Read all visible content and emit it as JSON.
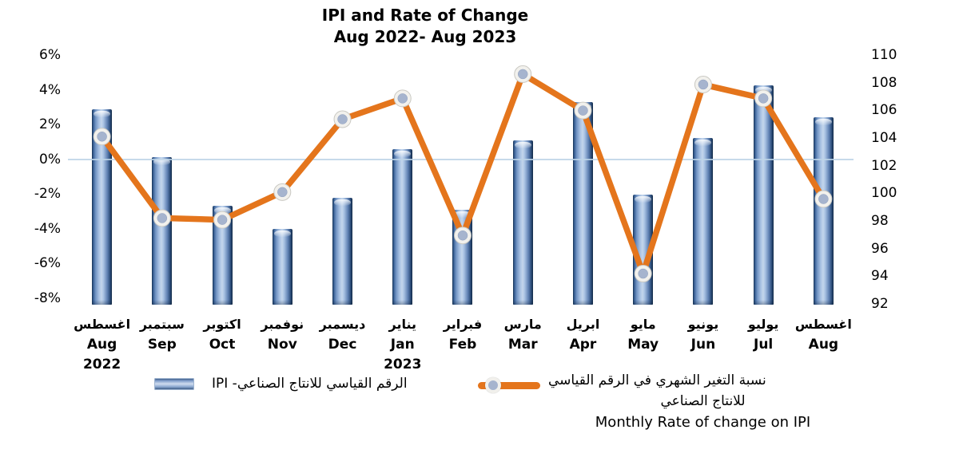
{
  "title": {
    "line1": "IPI and Rate of Change",
    "line2": "Aug 2022- Aug 2023"
  },
  "legend": {
    "bar_label": "الرقم القياسي للانتاج الصناعي- IPI",
    "line_label_ar1": "نسبة التغير الشهري في الرقم القياسي",
    "line_label_ar2": "للانتاج الصناعي",
    "line_label_en": "Monthly Rate of change on IPI"
  },
  "colors": {
    "bar_dark": "#1d3a63",
    "bar_light": "#c4d6ec",
    "line": "#e4751c",
    "marker_fill": "#a6b4ce",
    "marker_ring": "#f2f1ed",
    "gridline": "#bdd3e6",
    "text": "#000000"
  },
  "chart_data": {
    "type": "combo_bar_line",
    "title": "IPI and Rate of Change",
    "subtitle": "Aug 2022- Aug 2023",
    "categories_ar": [
      "اغسطس",
      "سبتمبر",
      "اكتوبر",
      "نوفمبر",
      "ديسمبر",
      "يناير",
      "فبراير",
      "مارس",
      "ابريل",
      "مايو",
      "يونيو",
      "يوليو",
      "اغسطس"
    ],
    "categories_en": [
      "Aug",
      "Sep",
      "Oct",
      "Nov",
      "Dec",
      "Jan",
      "Feb",
      "Mar",
      "Apr",
      "May",
      "Jun",
      "Jul",
      "Aug"
    ],
    "category_years": [
      "2022",
      "",
      "",
      "",
      "",
      "2023",
      "",
      "",
      "",
      "",
      "",
      "",
      ""
    ],
    "series": [
      {
        "name": "الرقم القياسي للانتاج الصناعي- IPI",
        "name_en": "IPI",
        "type": "bar",
        "axis": "right",
        "color": "#4f76ac",
        "values": [
          106.1,
          102.6,
          99.1,
          97.4,
          99.7,
          103.2,
          98.8,
          103.8,
          106.6,
          99.9,
          104.0,
          107.8,
          105.5
        ]
      },
      {
        "name": "نسبة التغير الشهري في الرقم القياسي للانتاج الصناعي",
        "name_en": "Monthly Rate of change on IPI",
        "type": "line",
        "axis": "left",
        "color": "#e4751c",
        "values": [
          1.3,
          -3.4,
          -3.5,
          -1.9,
          2.3,
          3.5,
          -4.4,
          4.9,
          2.8,
          -6.6,
          4.3,
          3.5,
          -2.3
        ]
      }
    ],
    "left_axis": {
      "unit": "%",
      "min": -8,
      "max": 6,
      "step": 2,
      "labels": [
        "6%",
        "4%",
        "2%",
        "0%",
        "-2%",
        "-4%",
        "-6%",
        "-8%"
      ],
      "values": [
        6,
        4,
        2,
        0,
        -2,
        -4,
        -6,
        -8
      ]
    },
    "right_axis": {
      "min": 92,
      "max": 110,
      "step": 2,
      "labels": [
        "110",
        "108",
        "106",
        "104",
        "102",
        "100",
        "98",
        "96",
        "94",
        "92"
      ],
      "values": [
        110,
        108,
        106,
        104,
        102,
        100,
        98,
        96,
        94,
        92
      ]
    },
    "gridlines": {
      "zero_line_at_left_value": 0
    },
    "legend_position": "bottom"
  }
}
